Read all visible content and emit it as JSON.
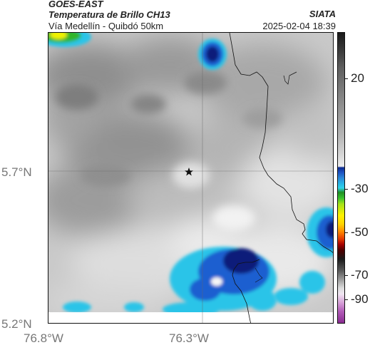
{
  "header": {
    "satellite": "GOES-EAST",
    "product": "Temperatura de Brillo CH13",
    "location": "Vía Medellín - Quibdó 50km",
    "organization": "SIATA",
    "datetime": "2025-02-04 18:39"
  },
  "axes": {
    "latitude_labels": [
      "5.7°N",
      "5.2°N"
    ],
    "longitude_labels": [
      "76.8°W",
      "76.3°W"
    ]
  },
  "colorbar": {
    "tick_labels": [
      "20",
      "-30",
      "-50",
      "-70",
      "-90"
    ]
  },
  "map": {
    "marker": "star-icon",
    "palette": {
      "dark_blue": "#0b1e7a",
      "blue": "#1f5fd0",
      "cyan": "#29c4e8",
      "green": "#30b52a",
      "yellow": "#f2f200",
      "cloud_gray": "#9a9a9a",
      "clear_white": "#f3f3f3"
    }
  }
}
